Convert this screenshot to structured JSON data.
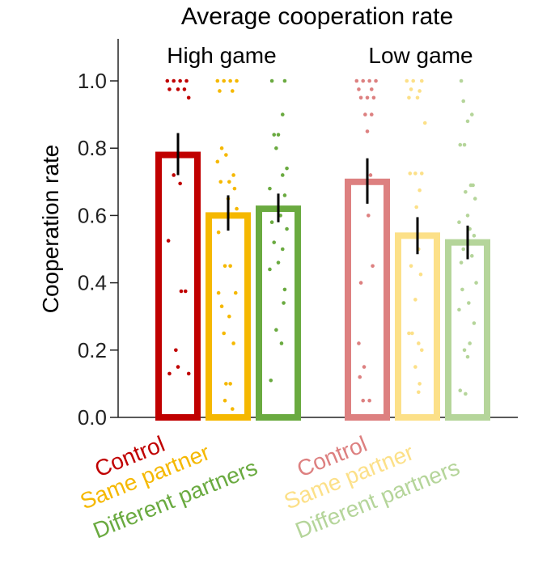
{
  "chart_data": {
    "type": "bar",
    "title": "Average cooperation rate",
    "ylabel": "Cooperation rate",
    "xlabel": "",
    "ylim": [
      0,
      1.1
    ],
    "yticks": [
      "0.0",
      "0.2",
      "0.4",
      "0.6",
      "0.8",
      "1.0"
    ],
    "grid": false,
    "groups": [
      {
        "label": "High game",
        "bars": [
          {
            "category": "Control",
            "color": "#c00000",
            "value": 0.78,
            "err_low": 0.72,
            "err_high": 0.845,
            "points": [
              {
                "x": -0.5,
                "y": 1.0
              },
              {
                "x": -0.2,
                "y": 1.0
              },
              {
                "x": 0.1,
                "y": 1.0
              },
              {
                "x": 0.4,
                "y": 1.0
              },
              {
                "x": -0.4,
                "y": 0.975
              },
              {
                "x": 0.0,
                "y": 0.975
              },
              {
                "x": 0.3,
                "y": 0.975
              },
              {
                "x": 0.5,
                "y": 0.95
              },
              {
                "x": -0.2,
                "y": 0.72
              },
              {
                "x": 0.1,
                "y": 0.695
              },
              {
                "x": -0.45,
                "y": 0.525
              },
              {
                "x": 0.15,
                "y": 0.375
              },
              {
                "x": 0.35,
                "y": 0.375
              },
              {
                "x": -0.1,
                "y": 0.2
              },
              {
                "x": -0.4,
                "y": 0.13
              },
              {
                "x": 0.0,
                "y": 0.15
              },
              {
                "x": 0.5,
                "y": 0.13
              }
            ]
          },
          {
            "category": "Same partner",
            "color": "#f5b800",
            "value": 0.6,
            "err_low": 0.555,
            "err_high": 0.66,
            "points": [
              {
                "x": -0.5,
                "y": 1.0
              },
              {
                "x": -0.2,
                "y": 1.0
              },
              {
                "x": 0.1,
                "y": 1.0
              },
              {
                "x": 0.4,
                "y": 1.0
              },
              {
                "x": -0.4,
                "y": 0.97
              },
              {
                "x": 0.2,
                "y": 0.97
              },
              {
                "x": -0.3,
                "y": 0.8
              },
              {
                "x": -0.1,
                "y": 0.78
              },
              {
                "x": -0.5,
                "y": 0.76
              },
              {
                "x": 0.25,
                "y": 0.72
              },
              {
                "x": -0.35,
                "y": 0.7
              },
              {
                "x": 0.05,
                "y": 0.7
              },
              {
                "x": 0.3,
                "y": 0.68
              },
              {
                "x": 0.0,
                "y": 0.65
              },
              {
                "x": 0.4,
                "y": 0.62
              },
              {
                "x": -0.45,
                "y": 0.55
              },
              {
                "x": -0.15,
                "y": 0.45
              },
              {
                "x": 0.1,
                "y": 0.45
              },
              {
                "x": -0.45,
                "y": 0.37
              },
              {
                "x": 0.35,
                "y": 0.37
              },
              {
                "x": -0.3,
                "y": 0.33
              },
              {
                "x": 0.05,
                "y": 0.3
              },
              {
                "x": -0.2,
                "y": 0.25
              },
              {
                "x": 0.25,
                "y": 0.22
              },
              {
                "x": -0.1,
                "y": 0.1
              },
              {
                "x": 0.1,
                "y": 0.1
              },
              {
                "x": -0.15,
                "y": 0.05
              },
              {
                "x": 0.2,
                "y": 0.025
              }
            ]
          },
          {
            "category": "Different partners",
            "color": "#6aaa40",
            "value": 0.62,
            "err_low": 0.58,
            "err_high": 0.665,
            "points": [
              {
                "x": -0.3,
                "y": 1.0
              },
              {
                "x": 0.3,
                "y": 1.0
              },
              {
                "x": 0.2,
                "y": 0.9
              },
              {
                "x": -0.2,
                "y": 0.84
              },
              {
                "x": 0.0,
                "y": 0.84
              },
              {
                "x": -0.1,
                "y": 0.8
              },
              {
                "x": 0.4,
                "y": 0.74
              },
              {
                "x": 0.2,
                "y": 0.72
              },
              {
                "x": -0.4,
                "y": 0.68
              },
              {
                "x": 0.3,
                "y": 0.66
              },
              {
                "x": -0.1,
                "y": 0.62
              },
              {
                "x": 0.1,
                "y": 0.6
              },
              {
                "x": -0.3,
                "y": 0.58
              },
              {
                "x": 0.4,
                "y": 0.56
              },
              {
                "x": -0.2,
                "y": 0.52
              },
              {
                "x": 0.2,
                "y": 0.5
              },
              {
                "x": 0.0,
                "y": 0.46
              },
              {
                "x": -0.4,
                "y": 0.44
              },
              {
                "x": 0.3,
                "y": 0.38
              },
              {
                "x": 0.25,
                "y": 0.34
              },
              {
                "x": -0.1,
                "y": 0.26
              },
              {
                "x": 0.15,
                "y": 0.22
              },
              {
                "x": -0.35,
                "y": 0.11
              }
            ]
          }
        ]
      },
      {
        "label": "Low game",
        "bars": [
          {
            "category": "Control",
            "color": "#dd8080",
            "value": 0.7,
            "err_low": 0.635,
            "err_high": 0.77,
            "points": [
              {
                "x": -0.5,
                "y": 1.0
              },
              {
                "x": -0.2,
                "y": 1.0
              },
              {
                "x": 0.1,
                "y": 1.0
              },
              {
                "x": 0.4,
                "y": 1.0
              },
              {
                "x": -0.4,
                "y": 0.975
              },
              {
                "x": 0.2,
                "y": 0.975
              },
              {
                "x": -0.3,
                "y": 0.95
              },
              {
                "x": 0.0,
                "y": 0.95
              },
              {
                "x": 0.3,
                "y": 0.95
              },
              {
                "x": -0.1,
                "y": 0.9
              },
              {
                "x": 0.2,
                "y": 0.9
              },
              {
                "x": 0.0,
                "y": 0.85
              },
              {
                "x": 0.15,
                "y": 0.72
              },
              {
                "x": -0.3,
                "y": 0.7
              },
              {
                "x": 0.05,
                "y": 0.6
              },
              {
                "x": 0.25,
                "y": 0.45
              },
              {
                "x": -0.3,
                "y": 0.4
              },
              {
                "x": -0.4,
                "y": 0.22
              },
              {
                "x": -0.15,
                "y": 0.15
              },
              {
                "x": -0.35,
                "y": 0.12
              },
              {
                "x": -0.2,
                "y": 0.05
              },
              {
                "x": 0.1,
                "y": 0.05
              }
            ]
          },
          {
            "category": "Same partner",
            "color": "#fce088",
            "value": 0.54,
            "err_low": 0.485,
            "err_high": 0.595,
            "points": [
              {
                "x": -0.5,
                "y": 1.0
              },
              {
                "x": -0.2,
                "y": 1.0
              },
              {
                "x": 0.2,
                "y": 1.0
              },
              {
                "x": -0.3,
                "y": 0.975
              },
              {
                "x": 0.1,
                "y": 0.97
              },
              {
                "x": -0.4,
                "y": 0.95
              },
              {
                "x": 0.0,
                "y": 0.95
              },
              {
                "x": 0.35,
                "y": 0.875
              },
              {
                "x": -0.35,
                "y": 0.725
              },
              {
                "x": -0.1,
                "y": 0.725
              },
              {
                "x": 0.2,
                "y": 0.725
              },
              {
                "x": 0.1,
                "y": 0.675
              },
              {
                "x": -0.05,
                "y": 0.625
              },
              {
                "x": 0.05,
                "y": 0.5
              },
              {
                "x": -0.3,
                "y": 0.45
              },
              {
                "x": 0.15,
                "y": 0.425
              },
              {
                "x": -0.1,
                "y": 0.35
              },
              {
                "x": -0.4,
                "y": 0.25
              },
              {
                "x": -0.25,
                "y": 0.25
              },
              {
                "x": 0.05,
                "y": 0.22
              },
              {
                "x": 0.2,
                "y": 0.2
              },
              {
                "x": -0.1,
                "y": 0.15
              },
              {
                "x": 0.1,
                "y": 0.1
              },
              {
                "x": 0.05,
                "y": 0.075
              }
            ]
          },
          {
            "category": "Different partners",
            "color": "#b5d59a",
            "value": 0.52,
            "err_low": 0.47,
            "err_high": 0.57,
            "points": [
              {
                "x": -0.3,
                "y": 1.0
              },
              {
                "x": -0.2,
                "y": 0.94
              },
              {
                "x": 0.2,
                "y": 0.9
              },
              {
                "x": 0.0,
                "y": 0.88
              },
              {
                "x": -0.35,
                "y": 0.81
              },
              {
                "x": -0.15,
                "y": 0.81
              },
              {
                "x": 0.15,
                "y": 0.69
              },
              {
                "x": 0.25,
                "y": 0.69
              },
              {
                "x": -0.1,
                "y": 0.67
              },
              {
                "x": 0.35,
                "y": 0.65
              },
              {
                "x": 0.0,
                "y": 0.6
              },
              {
                "x": -0.4,
                "y": 0.58
              },
              {
                "x": 0.1,
                "y": 0.56
              },
              {
                "x": 0.3,
                "y": 0.54
              },
              {
                "x": -0.2,
                "y": 0.5
              },
              {
                "x": 0.2,
                "y": 0.48
              },
              {
                "x": -0.3,
                "y": 0.46
              },
              {
                "x": 0.4,
                "y": 0.4
              },
              {
                "x": -0.25,
                "y": 0.38
              },
              {
                "x": 0.05,
                "y": 0.34
              },
              {
                "x": -0.4,
                "y": 0.32
              },
              {
                "x": 0.3,
                "y": 0.28
              },
              {
                "x": 0.1,
                "y": 0.22
              },
              {
                "x": -0.15,
                "y": 0.2
              },
              {
                "x": 0.0,
                "y": 0.18
              },
              {
                "x": -0.35,
                "y": 0.08
              },
              {
                "x": -0.1,
                "y": 0.07
              }
            ]
          }
        ]
      }
    ]
  }
}
